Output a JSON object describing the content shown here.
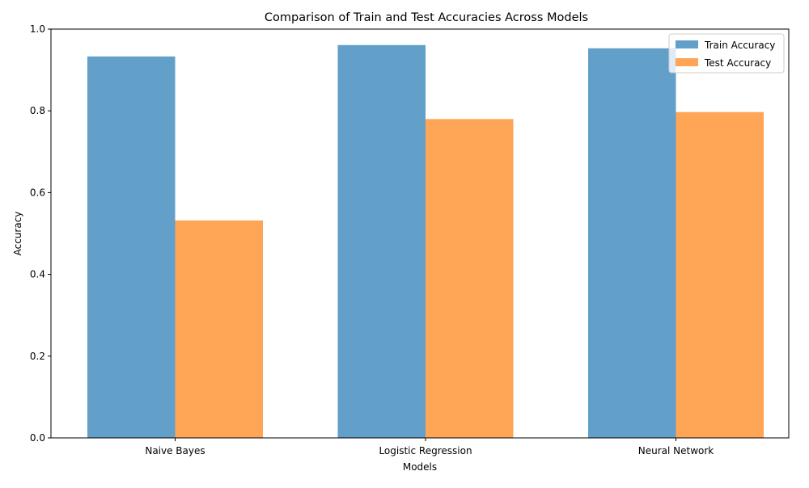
{
  "chart_data": {
    "type": "bar",
    "title": "Comparison of Train and Test Accuracies Across Models",
    "xlabel": "Models",
    "ylabel": "Accuracy",
    "categories": [
      "Naive Bayes",
      "Logistic Regression",
      "Neural Network"
    ],
    "series": [
      {
        "name": "Train Accuracy",
        "values": [
          0.933,
          0.961,
          0.953
        ],
        "color": "#1f77b4"
      },
      {
        "name": "Test Accuracy",
        "values": [
          0.532,
          0.78,
          0.797
        ],
        "color": "#ff7f0e"
      }
    ],
    "ylim": [
      0,
      1.0
    ],
    "yticks": [
      "0.0",
      "0.2",
      "0.4",
      "0.6",
      "0.8",
      "1.0"
    ],
    "grid": false,
    "legend_position": "top-right"
  }
}
